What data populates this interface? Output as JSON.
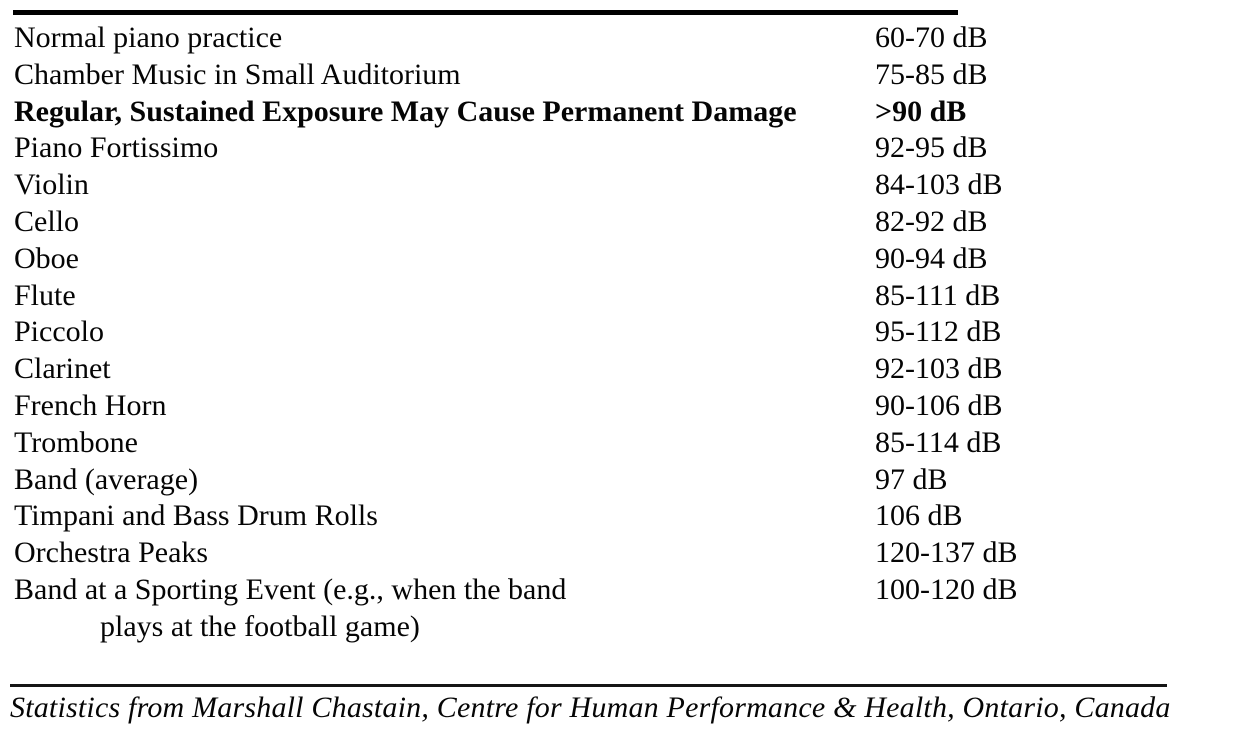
{
  "table": {
    "unit": "dB",
    "rows": [
      {
        "label": "Normal piano practice",
        "value": "60-70 dB"
      },
      {
        "label": "Chamber Music in Small Auditorium",
        "value": "75-85 dB"
      },
      {
        "label": "Regular, Sustained Exposure May Cause Permanent Damage",
        "value": ">90 dB"
      },
      {
        "label": "Piano Fortissimo",
        "value": "92-95 dB"
      },
      {
        "label": "Violin",
        "value": "84-103 dB"
      },
      {
        "label": "Cello",
        "value": "82-92 dB"
      },
      {
        "label": "Oboe",
        "value": "90-94 dB"
      },
      {
        "label": "Flute",
        "value": "85-111 dB"
      },
      {
        "label": "Piccolo",
        "value": "95-112 dB"
      },
      {
        "label": "Clarinet",
        "value": "92-103 dB"
      },
      {
        "label": "French Horn",
        "value": "90-106 dB"
      },
      {
        "label": "Trombone",
        "value": "85-114 dB"
      },
      {
        "label": "Band (average)",
        "value": "97 dB"
      },
      {
        "label": "Timpani and Bass Drum Rolls",
        "value": "106 dB"
      },
      {
        "label": "Orchestra Peaks",
        "value": "120-137 dB"
      },
      {
        "label": "Band at a Sporting Event (e.g., when the band",
        "label_line2": "plays at the football game)",
        "value": "100-120 dB"
      }
    ]
  },
  "footer": {
    "citation": "Statistics from Marshall Chastain, Centre for Human Performance & Health, Ontario, Canada"
  },
  "colors": {
    "text": "#050505",
    "rule": "#000000",
    "background": "#ffffff"
  }
}
